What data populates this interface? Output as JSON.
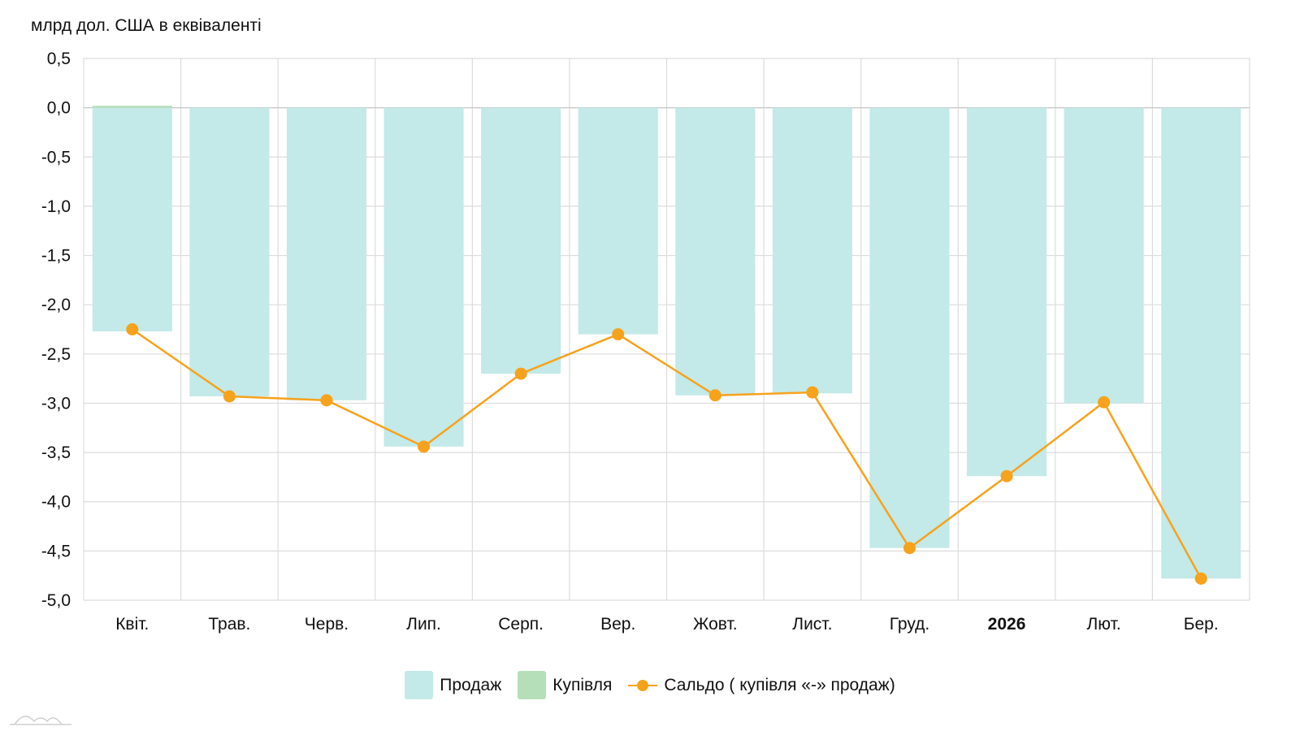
{
  "chart_data": {
    "type": "bar",
    "ylabel": "млрд дол. США в еквіваленті",
    "categories": [
      "Квіт.",
      "Трав.",
      "Черв.",
      "Лип.",
      "Серп.",
      "Вер.",
      "Жовт.",
      "Лист.",
      "Груд.",
      "2026",
      "Лют.",
      "Бер."
    ],
    "bold_categories": [
      "2026"
    ],
    "ylim": [
      -5.0,
      0.5
    ],
    "yticks": [
      0.5,
      0.0,
      -0.5,
      -1.0,
      -1.5,
      -2.0,
      -2.5,
      -3.0,
      -3.5,
      -4.0,
      -4.5,
      -5.0
    ],
    "ytick_labels": [
      "0,5",
      "0,0",
      "-0,5",
      "-1,0",
      "-1,5",
      "-2,0",
      "-2,5",
      "-3,0",
      "-3,5",
      "-4,0",
      "-4,5",
      "-5,0"
    ],
    "grid": true,
    "legend_position": "bottom-center",
    "series": [
      {
        "name": "Продаж",
        "kind": "bar",
        "color": "#c3e9e8",
        "values": [
          -2.27,
          -2.93,
          -2.97,
          -3.44,
          -2.7,
          -2.3,
          -2.92,
          -2.9,
          -4.47,
          -3.74,
          -3.0,
          -4.78
        ]
      },
      {
        "name": "Купівля",
        "kind": "bar",
        "color": "#b5dfb9",
        "values": [
          0.02,
          0.0,
          0.0,
          0.0,
          0.0,
          0.0,
          0.0,
          0.0,
          0.0,
          0.0,
          0.0,
          0.0
        ]
      },
      {
        "name": "Сальдо ( купівля «-» продаж)",
        "kind": "line",
        "color": "#f7a21b",
        "values": [
          -2.25,
          -2.93,
          -2.97,
          -3.44,
          -2.7,
          -2.3,
          -2.92,
          -2.89,
          -4.47,
          -3.74,
          -2.99,
          -4.78
        ]
      }
    ]
  }
}
